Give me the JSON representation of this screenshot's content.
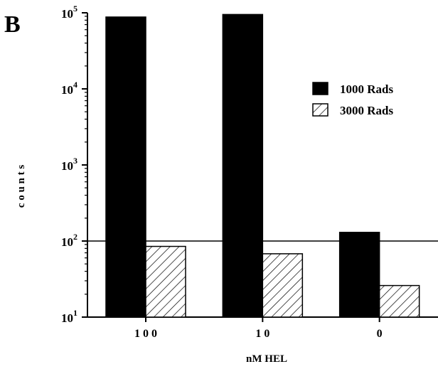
{
  "panel_label": "B",
  "chart_data": {
    "type": "bar",
    "categories": [
      "1 0 0",
      "1 0",
      "0"
    ],
    "series": [
      {
        "name": "1000 Rads",
        "fill": "solid",
        "color": "#000000",
        "values": [
          88000,
          95000,
          130
        ]
      },
      {
        "name": "3000 Rads",
        "fill": "hatched",
        "color": "#000000",
        "values": [
          85,
          68,
          26
        ]
      }
    ],
    "xlabel": "nM  HEL",
    "ylabel": "c o u n t s",
    "y_scale": "log",
    "ylim": [
      10,
      100000
    ],
    "y_ticks": [
      {
        "base": "10",
        "exp": "1"
      },
      {
        "base": "10",
        "exp": "2"
      },
      {
        "base": "10",
        "exp": "3"
      },
      {
        "base": "10",
        "exp": "4"
      },
      {
        "base": "10",
        "exp": "5"
      }
    ],
    "reference_line": 100,
    "legend_position": "top-right",
    "grid": false
  }
}
